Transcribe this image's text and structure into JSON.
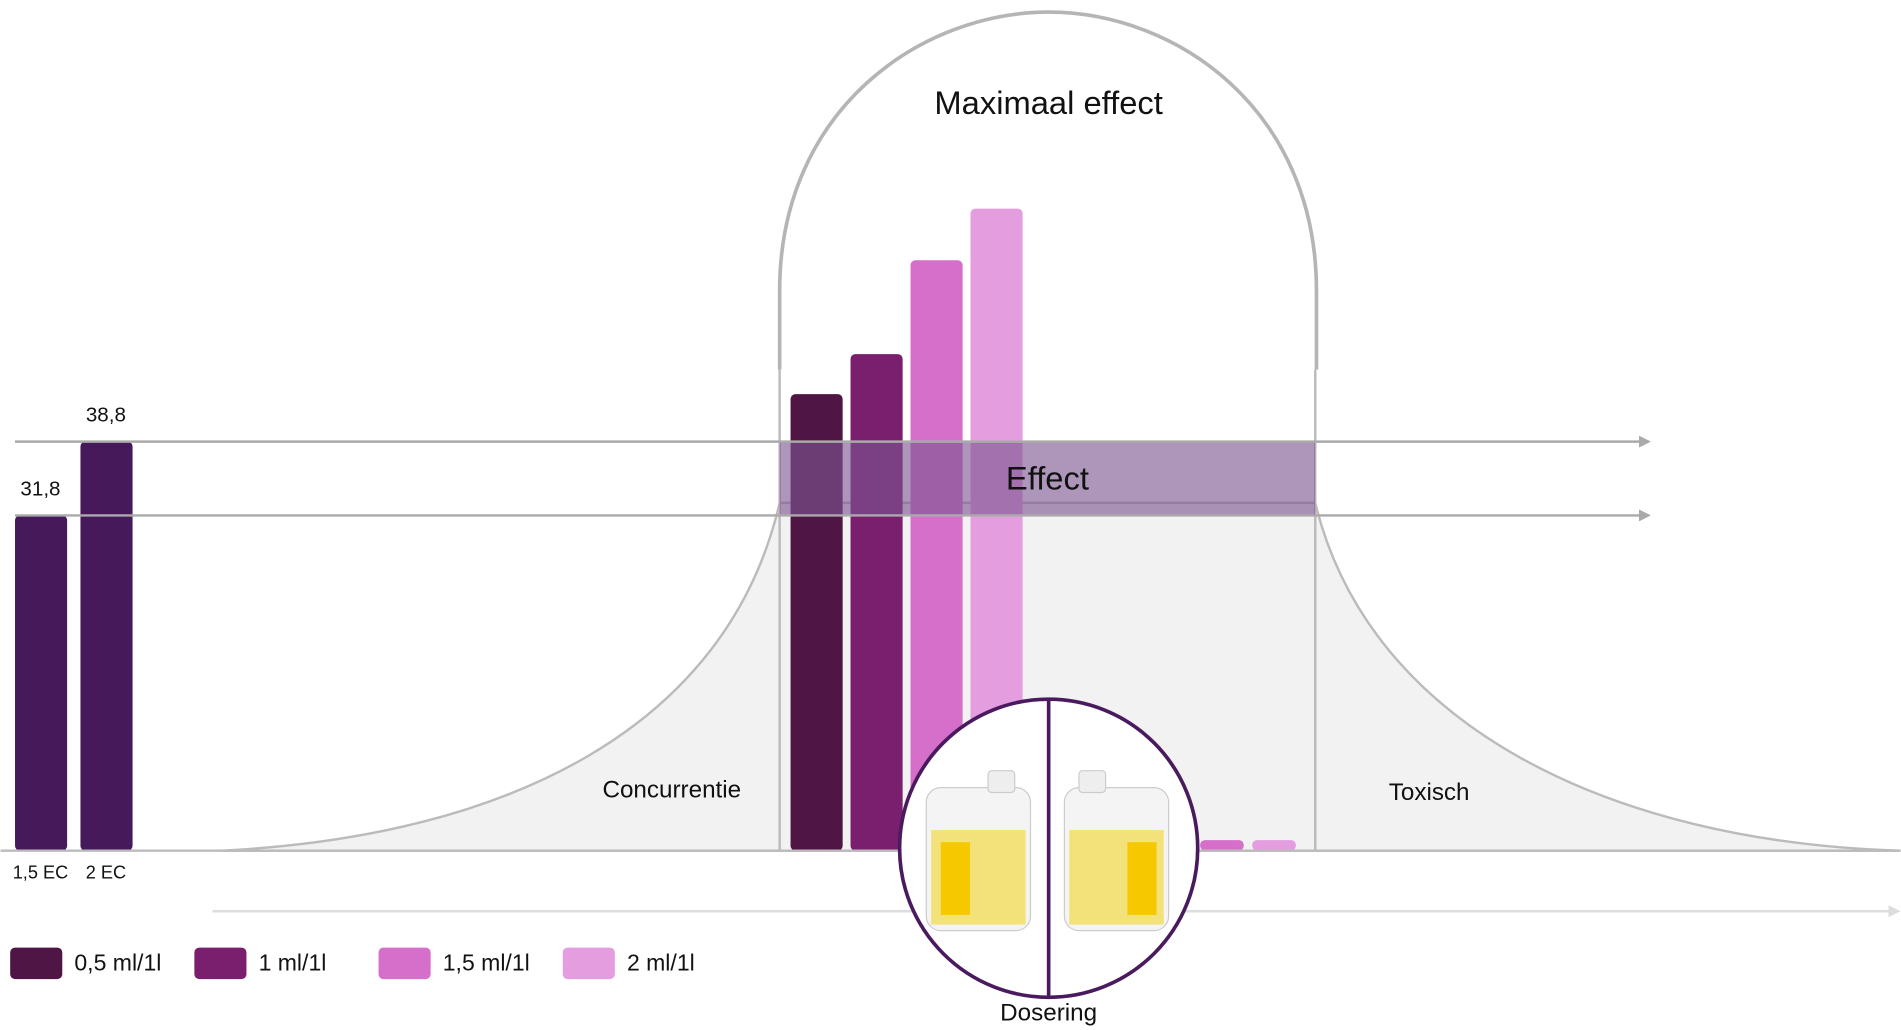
{
  "chart_data": {
    "type": "bar",
    "title": "Maximaal effect",
    "band_label": "Effect",
    "left_zone": "Concurrentie",
    "right_zone": "Toxisch",
    "x_label": "Dosering",
    "ylim": [
      0,
      80
    ],
    "reference": {
      "categories": [
        "1,5 EC",
        "2 EC"
      ],
      "values": [
        31.8,
        38.8
      ],
      "value_labels": [
        "31,8",
        "38,8"
      ],
      "color": "#45195a"
    },
    "series": [
      {
        "name": "0,5 ml/1l",
        "color": "#4f1645",
        "values": [
          43.3,
          null
        ]
      },
      {
        "name": "1 ml/1l",
        "color": "#7a1f6e",
        "values": [
          47.1,
          null
        ]
      },
      {
        "name": "1,5 ml/1l",
        "color": "#d56fca",
        "values": [
          56,
          1
        ]
      },
      {
        "name": "2 ml/1l",
        "color": "#e49ddf",
        "values": [
          60.9,
          1
        ]
      }
    ]
  }
}
